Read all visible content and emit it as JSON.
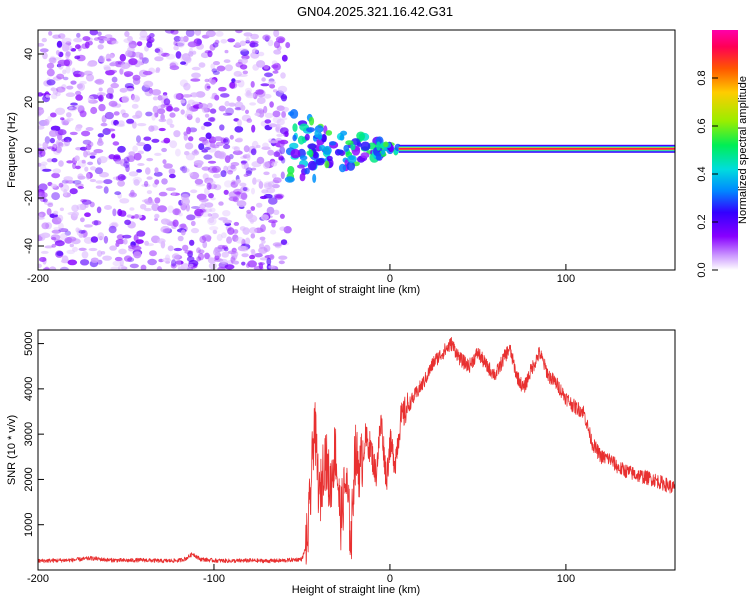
{
  "page": {
    "title": "GN04.2025.321.16.42.G31"
  },
  "chart_data": [
    {
      "type": "heatmap",
      "title": "GN04.2025.321.16.42.G31",
      "xlabel": "Height of straight line (km)",
      "ylabel": "Frequency (Hz)",
      "xlim": [
        -200,
        162
      ],
      "ylim": [
        -50,
        50
      ],
      "xticks": [
        -200,
        -100,
        0,
        100
      ],
      "xtick_labels": [
        "-200",
        "-100",
        "0",
        "100"
      ],
      "yticks": [
        -40,
        -20,
        0,
        20,
        40
      ],
      "ytick_labels": [
        "-40",
        "-20",
        "0",
        "20",
        "40"
      ],
      "colorbar": {
        "label": "Normalized spectral amplitude",
        "range": [
          0,
          1
        ],
        "ticks": [
          0.0,
          0.2,
          0.4,
          0.6,
          0.8
        ],
        "tick_labels": [
          "0.0",
          "0.2",
          "0.4",
          "0.6",
          "0.8"
        ],
        "colormap": [
          "#ffffff",
          "#cc99ff",
          "#8800ff",
          "#3300ff",
          "#0088ff",
          "#00dddd",
          "#00ee55",
          "#99ee00",
          "#ffcc00",
          "#ff5500",
          "#ff0055",
          "#ff00aa"
        ]
      },
      "features": {
        "noise_region_x": [
          -200,
          -58
        ],
        "carrier_start_x": 5,
        "carrier_frequency_hz": 0.5,
        "carrier_amplitude": 0.92
      }
    },
    {
      "type": "line",
      "title": "",
      "xlabel": "Height of straight line (km)",
      "ylabel": "SNR (10 * v/v)",
      "xlim": [
        -200,
        162
      ],
      "ylim": [
        0,
        5300
      ],
      "xticks": [
        -200,
        -100,
        0,
        100
      ],
      "xtick_labels": [
        "-200",
        "-100",
        "0",
        "100"
      ],
      "yticks": [
        1000,
        2000,
        3000,
        4000,
        5000
      ],
      "ytick_labels": [
        "1000",
        "2000",
        "3000",
        "4000",
        "5000"
      ],
      "line_color": "#e83030",
      "series": [
        {
          "x": [
            -200,
            -190,
            -180,
            -170,
            -160,
            -150,
            -140,
            -130,
            -120,
            -116,
            -112,
            -108,
            -100,
            -90,
            -80,
            -70,
            -60,
            -50,
            -47,
            -45,
            -43,
            -40,
            -37,
            -34,
            -31,
            -28,
            -25,
            -22,
            -20,
            -17,
            -14,
            -11,
            -8,
            -5,
            -2,
            0,
            3,
            6,
            10,
            15,
            20,
            25,
            30,
            35,
            40,
            45,
            50,
            55,
            60,
            65,
            68,
            72,
            76,
            80,
            85,
            90,
            95,
            100,
            105,
            110,
            115,
            120,
            125,
            130,
            140,
            150,
            162
          ],
          "y": [
            200,
            210,
            220,
            260,
            220,
            210,
            220,
            200,
            210,
            250,
            360,
            240,
            210,
            200,
            210,
            200,
            210,
            240,
            600,
            1700,
            3300,
            1500,
            2600,
            1800,
            2700,
            1100,
            2000,
            600,
            2600,
            2200,
            2900,
            2700,
            2100,
            3300,
            2000,
            2800,
            2400,
            3300,
            3600,
            3900,
            4200,
            4600,
            4800,
            5000,
            4650,
            4500,
            4800,
            4500,
            4300,
            4700,
            4900,
            4300,
            4000,
            4400,
            4800,
            4300,
            4100,
            3800,
            3600,
            3500,
            2800,
            2500,
            2450,
            2250,
            2100,
            2000,
            1800
          ]
        }
      ]
    }
  ]
}
